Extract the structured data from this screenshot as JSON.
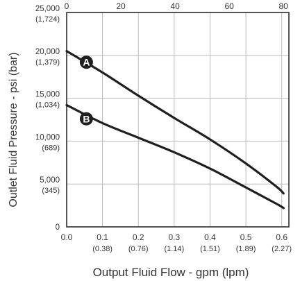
{
  "chart_data": {
    "type": "line",
    "xlabel": "Output Fluid Flow - gpm (lpm)",
    "ylabel": "Outlet Fluid Pressure - psi (bar)",
    "xlim": [
      0,
      0.62
    ],
    "ylim": [
      0,
      25000
    ],
    "top_axis_lim": [
      0,
      82
    ],
    "grid": true,
    "x_ticks": [
      {
        "value": 0.0,
        "label": "0.0",
        "sublabel": ""
      },
      {
        "value": 0.1,
        "label": "0.1",
        "sublabel": "(0.38)"
      },
      {
        "value": 0.2,
        "label": "0.2",
        "sublabel": "(0.76)"
      },
      {
        "value": 0.3,
        "label": "0.3",
        "sublabel": "(1.14)"
      },
      {
        "value": 0.4,
        "label": "0.4",
        "sublabel": "(1.51)"
      },
      {
        "value": 0.5,
        "label": "0.5",
        "sublabel": "(1.89)"
      },
      {
        "value": 0.6,
        "label": "0.6",
        "sublabel": "(2.27)"
      }
    ],
    "y_ticks": [
      {
        "value": 0,
        "label": "0",
        "sublabel": ""
      },
      {
        "value": 5000,
        "label": "5,000",
        "sublabel": "(345)"
      },
      {
        "value": 10000,
        "label": "10,000",
        "sublabel": "(689)"
      },
      {
        "value": 15000,
        "label": "15,000",
        "sublabel": "(1,034)"
      },
      {
        "value": 20000,
        "label": "20,000",
        "sublabel": "(1,379)"
      },
      {
        "value": 25000,
        "label": "25,000",
        "sublabel": "(1,724)"
      }
    ],
    "top_ticks": [
      {
        "value": 0,
        "label": "0"
      },
      {
        "value": 20,
        "label": "20"
      },
      {
        "value": 40,
        "label": "40"
      },
      {
        "value": 60,
        "label": "60"
      },
      {
        "value": 80,
        "label": "80"
      }
    ],
    "series": [
      {
        "marker": "A",
        "marker_at": {
          "x": 0.055,
          "y": 19200
        },
        "points": [
          [
            0.0,
            20500
          ],
          [
            0.1,
            18000
          ],
          [
            0.2,
            15300
          ],
          [
            0.3,
            12700
          ],
          [
            0.4,
            10200
          ],
          [
            0.5,
            7400
          ],
          [
            0.585,
            4700
          ],
          [
            0.605,
            3900
          ]
        ]
      },
      {
        "marker": "B",
        "marker_at": {
          "x": 0.055,
          "y": 12600
        },
        "points": [
          [
            0.0,
            14200
          ],
          [
            0.1,
            12100
          ],
          [
            0.2,
            10400
          ],
          [
            0.3,
            8700
          ],
          [
            0.4,
            6800
          ],
          [
            0.5,
            4600
          ],
          [
            0.585,
            2700
          ],
          [
            0.605,
            2200
          ]
        ]
      }
    ]
  }
}
